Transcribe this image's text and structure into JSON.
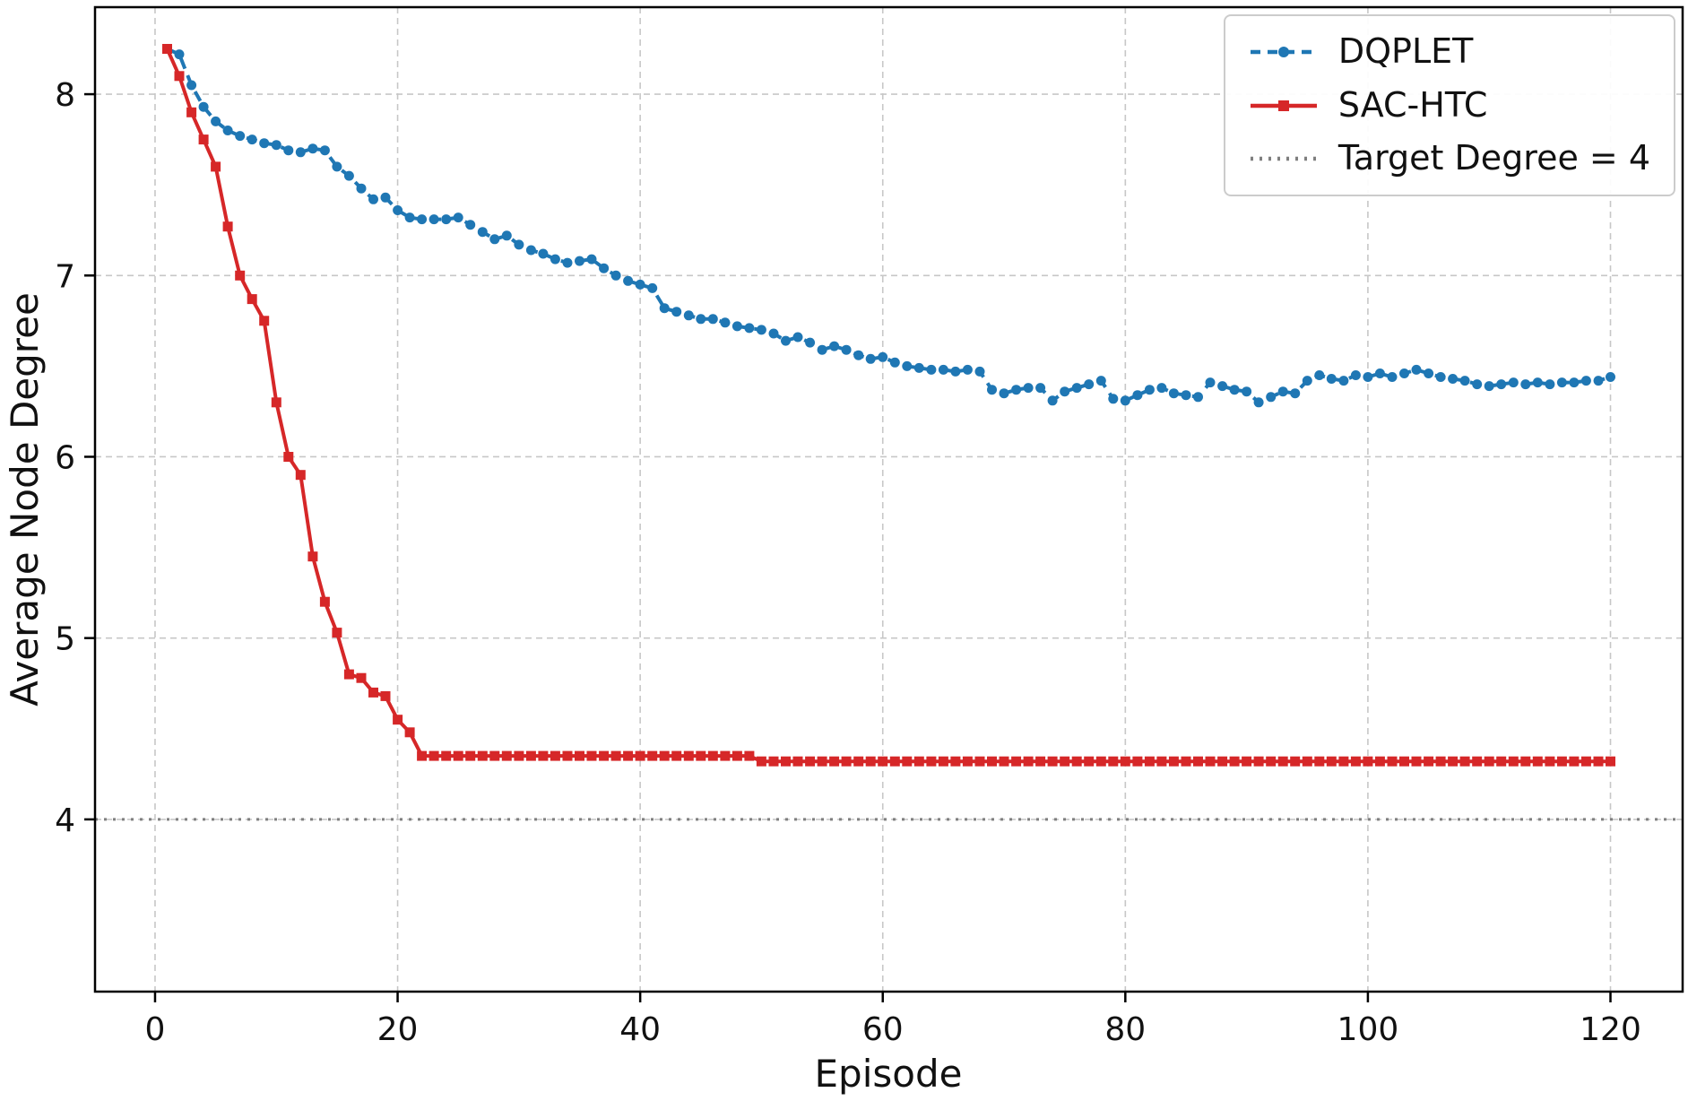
{
  "figure": {
    "background": "#ffffff"
  },
  "chart_data": {
    "type": "line",
    "title": "",
    "xlabel": "Episode",
    "ylabel": "Average Node Degree",
    "xlim": [
      -4.95,
      125.95
    ],
    "ylim": [
      3.05,
      8.48
    ],
    "xticks": [
      0,
      20,
      40,
      60,
      80,
      100,
      120
    ],
    "yticks": [
      4,
      5,
      6,
      7,
      8
    ],
    "grid": true,
    "grid_style": "dashed",
    "legend_position": "upper right",
    "x": [
      1,
      2,
      3,
      4,
      5,
      6,
      7,
      8,
      9,
      10,
      11,
      12,
      13,
      14,
      15,
      16,
      17,
      18,
      19,
      20,
      21,
      22,
      23,
      24,
      25,
      26,
      27,
      28,
      29,
      30,
      31,
      32,
      33,
      34,
      35,
      36,
      37,
      38,
      39,
      40,
      41,
      42,
      43,
      44,
      45,
      46,
      47,
      48,
      49,
      50,
      51,
      52,
      53,
      54,
      55,
      56,
      57,
      58,
      59,
      60,
      61,
      62,
      63,
      64,
      65,
      66,
      67,
      68,
      69,
      70,
      71,
      72,
      73,
      74,
      75,
      76,
      77,
      78,
      79,
      80,
      81,
      82,
      83,
      84,
      85,
      86,
      87,
      88,
      89,
      90,
      91,
      92,
      93,
      94,
      95,
      96,
      97,
      98,
      99,
      100,
      101,
      102,
      103,
      104,
      105,
      106,
      107,
      108,
      109,
      110,
      111,
      112,
      113,
      114,
      115,
      116,
      117,
      118,
      119,
      120
    ],
    "series": [
      {
        "name": "DQPLET",
        "color": "#1f77b4",
        "line_style": "dashed",
        "marker": "circle",
        "values": [
          8.25,
          8.22,
          8.05,
          7.93,
          7.85,
          7.8,
          7.77,
          7.75,
          7.73,
          7.72,
          7.69,
          7.68,
          7.7,
          7.69,
          7.6,
          7.55,
          7.48,
          7.42,
          7.43,
          7.36,
          7.32,
          7.31,
          7.31,
          7.31,
          7.32,
          7.28,
          7.24,
          7.2,
          7.22,
          7.17,
          7.14,
          7.12,
          7.09,
          7.07,
          7.08,
          7.09,
          7.04,
          7.0,
          6.97,
          6.95,
          6.93,
          6.82,
          6.8,
          6.78,
          6.76,
          6.76,
          6.74,
          6.72,
          6.71,
          6.7,
          6.68,
          6.64,
          6.66,
          6.63,
          6.59,
          6.61,
          6.59,
          6.56,
          6.54,
          6.55,
          6.52,
          6.5,
          6.49,
          6.48,
          6.48,
          6.47,
          6.48,
          6.47,
          6.37,
          6.35,
          6.37,
          6.38,
          6.38,
          6.31,
          6.36,
          6.38,
          6.4,
          6.42,
          6.32,
          6.31,
          6.34,
          6.37,
          6.38,
          6.35,
          6.34,
          6.33,
          6.41,
          6.39,
          6.37,
          6.36,
          6.3,
          6.33,
          6.36,
          6.35,
          6.42,
          6.45,
          6.43,
          6.42,
          6.45,
          6.44,
          6.46,
          6.44,
          6.46,
          6.48,
          6.46,
          6.44,
          6.43,
          6.42,
          6.4,
          6.39,
          6.4,
          6.41,
          6.4,
          6.41,
          6.4,
          6.41,
          6.41,
          6.42,
          6.42,
          6.44
        ]
      },
      {
        "name": "SAC-HTC",
        "color": "#d62728",
        "line_style": "solid",
        "marker": "square",
        "values": [
          8.25,
          8.1,
          7.9,
          7.75,
          7.6,
          7.27,
          7.0,
          6.87,
          6.75,
          6.3,
          6.0,
          5.9,
          5.45,
          5.2,
          5.03,
          4.8,
          4.78,
          4.7,
          4.68,
          4.55,
          4.48,
          4.35,
          4.35,
          4.35,
          4.35,
          4.35,
          4.35,
          4.35,
          4.35,
          4.35,
          4.35,
          4.35,
          4.35,
          4.35,
          4.35,
          4.35,
          4.35,
          4.35,
          4.35,
          4.35,
          4.35,
          4.35,
          4.35,
          4.35,
          4.35,
          4.35,
          4.35,
          4.35,
          4.35,
          4.32,
          4.32,
          4.32,
          4.32,
          4.32,
          4.32,
          4.32,
          4.32,
          4.32,
          4.32,
          4.32,
          4.32,
          4.32,
          4.32,
          4.32,
          4.32,
          4.32,
          4.32,
          4.32,
          4.32,
          4.32,
          4.32,
          4.32,
          4.32,
          4.32,
          4.32,
          4.32,
          4.32,
          4.32,
          4.32,
          4.32,
          4.32,
          4.32,
          4.32,
          4.32,
          4.32,
          4.32,
          4.32,
          4.32,
          4.32,
          4.32,
          4.32,
          4.32,
          4.32,
          4.32,
          4.32,
          4.32,
          4.32,
          4.32,
          4.32,
          4.32,
          4.32,
          4.32,
          4.32,
          4.32,
          4.32,
          4.32,
          4.32,
          4.32,
          4.32,
          4.32,
          4.32,
          4.32,
          4.32,
          4.32,
          4.32,
          4.32,
          4.32,
          4.32,
          4.32,
          4.32
        ]
      }
    ],
    "reference_lines": [
      {
        "label": "Target Degree = 4",
        "y": 4,
        "color": "#7f7f7f",
        "line_style": "dotted"
      }
    ]
  }
}
